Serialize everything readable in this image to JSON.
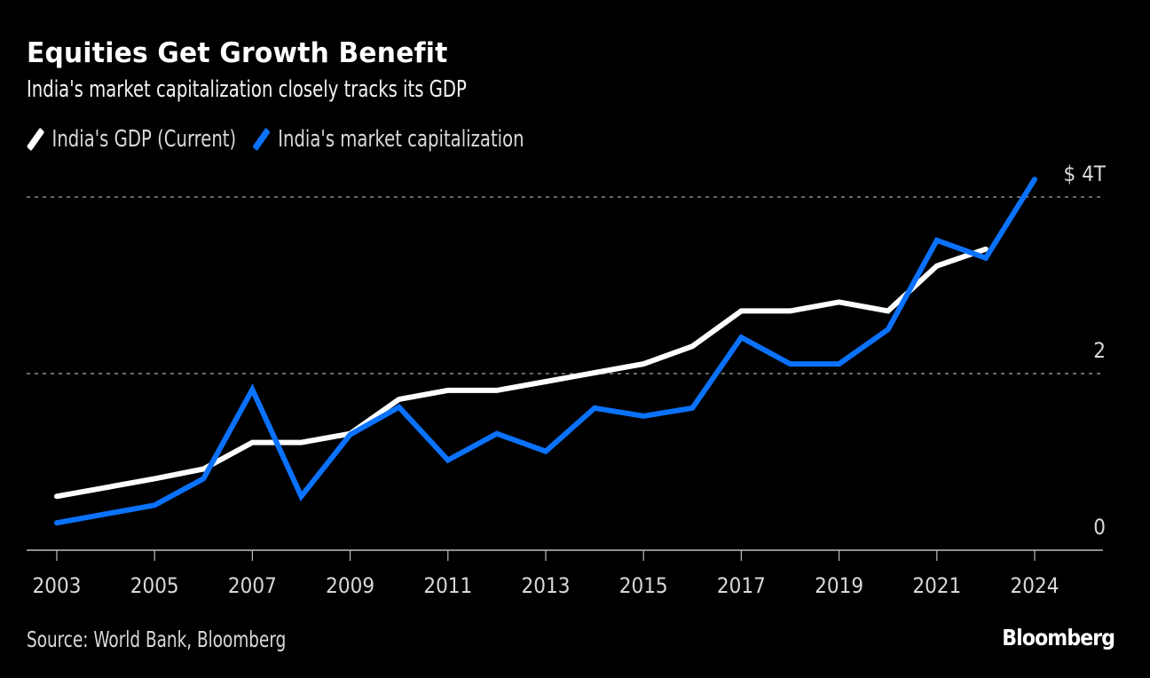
{
  "header": {
    "title": "Equities Get Growth Benefit",
    "subtitle": "India's market capitalization closely tracks its GDP"
  },
  "footer": {
    "source": "Source: World Bank, Bloomberg",
    "brand": "Bloomberg"
  },
  "chart_data": {
    "type": "line",
    "title": "Equities Get Growth Benefit",
    "subtitle": "India's market capitalization closely tracks its GDP",
    "xlabel": "",
    "ylabel": "",
    "x": [
      2003,
      2004,
      2005,
      2006,
      2007,
      2008,
      2009,
      2010,
      2011,
      2012,
      2013,
      2014,
      2015,
      2016,
      2017,
      2018,
      2019,
      2020,
      2021,
      2022,
      2024
    ],
    "x_tick_labels": [
      "2003",
      "2005",
      "2007",
      "2009",
      "2011",
      "2013",
      "2015",
      "2017",
      "2019",
      "2021",
      "2024"
    ],
    "y_ticks": [
      0,
      2,
      4
    ],
    "y_tick_labels": [
      "0",
      "2",
      "$ 4T"
    ],
    "ylim": [
      0,
      4.4
    ],
    "grid": true,
    "legend_position": "top-left",
    "series": [
      {
        "name": "India's GDP (Current)",
        "color": "#ffffff",
        "values": [
          0.61,
          0.71,
          0.81,
          0.92,
          1.22,
          1.22,
          1.32,
          1.71,
          1.81,
          1.81,
          1.91,
          2.01,
          2.11,
          2.31,
          2.71,
          2.71,
          2.81,
          2.71,
          3.22,
          3.41,
          null
        ]
      },
      {
        "name": "India's market capitalization",
        "color": "#0a72ff",
        "values": [
          0.31,
          0.41,
          0.51,
          0.81,
          1.82,
          0.61,
          1.31,
          1.62,
          1.02,
          1.32,
          1.12,
          1.61,
          1.52,
          1.61,
          2.41,
          2.11,
          2.11,
          2.5,
          3.51,
          3.31,
          4.2
        ]
      }
    ]
  }
}
